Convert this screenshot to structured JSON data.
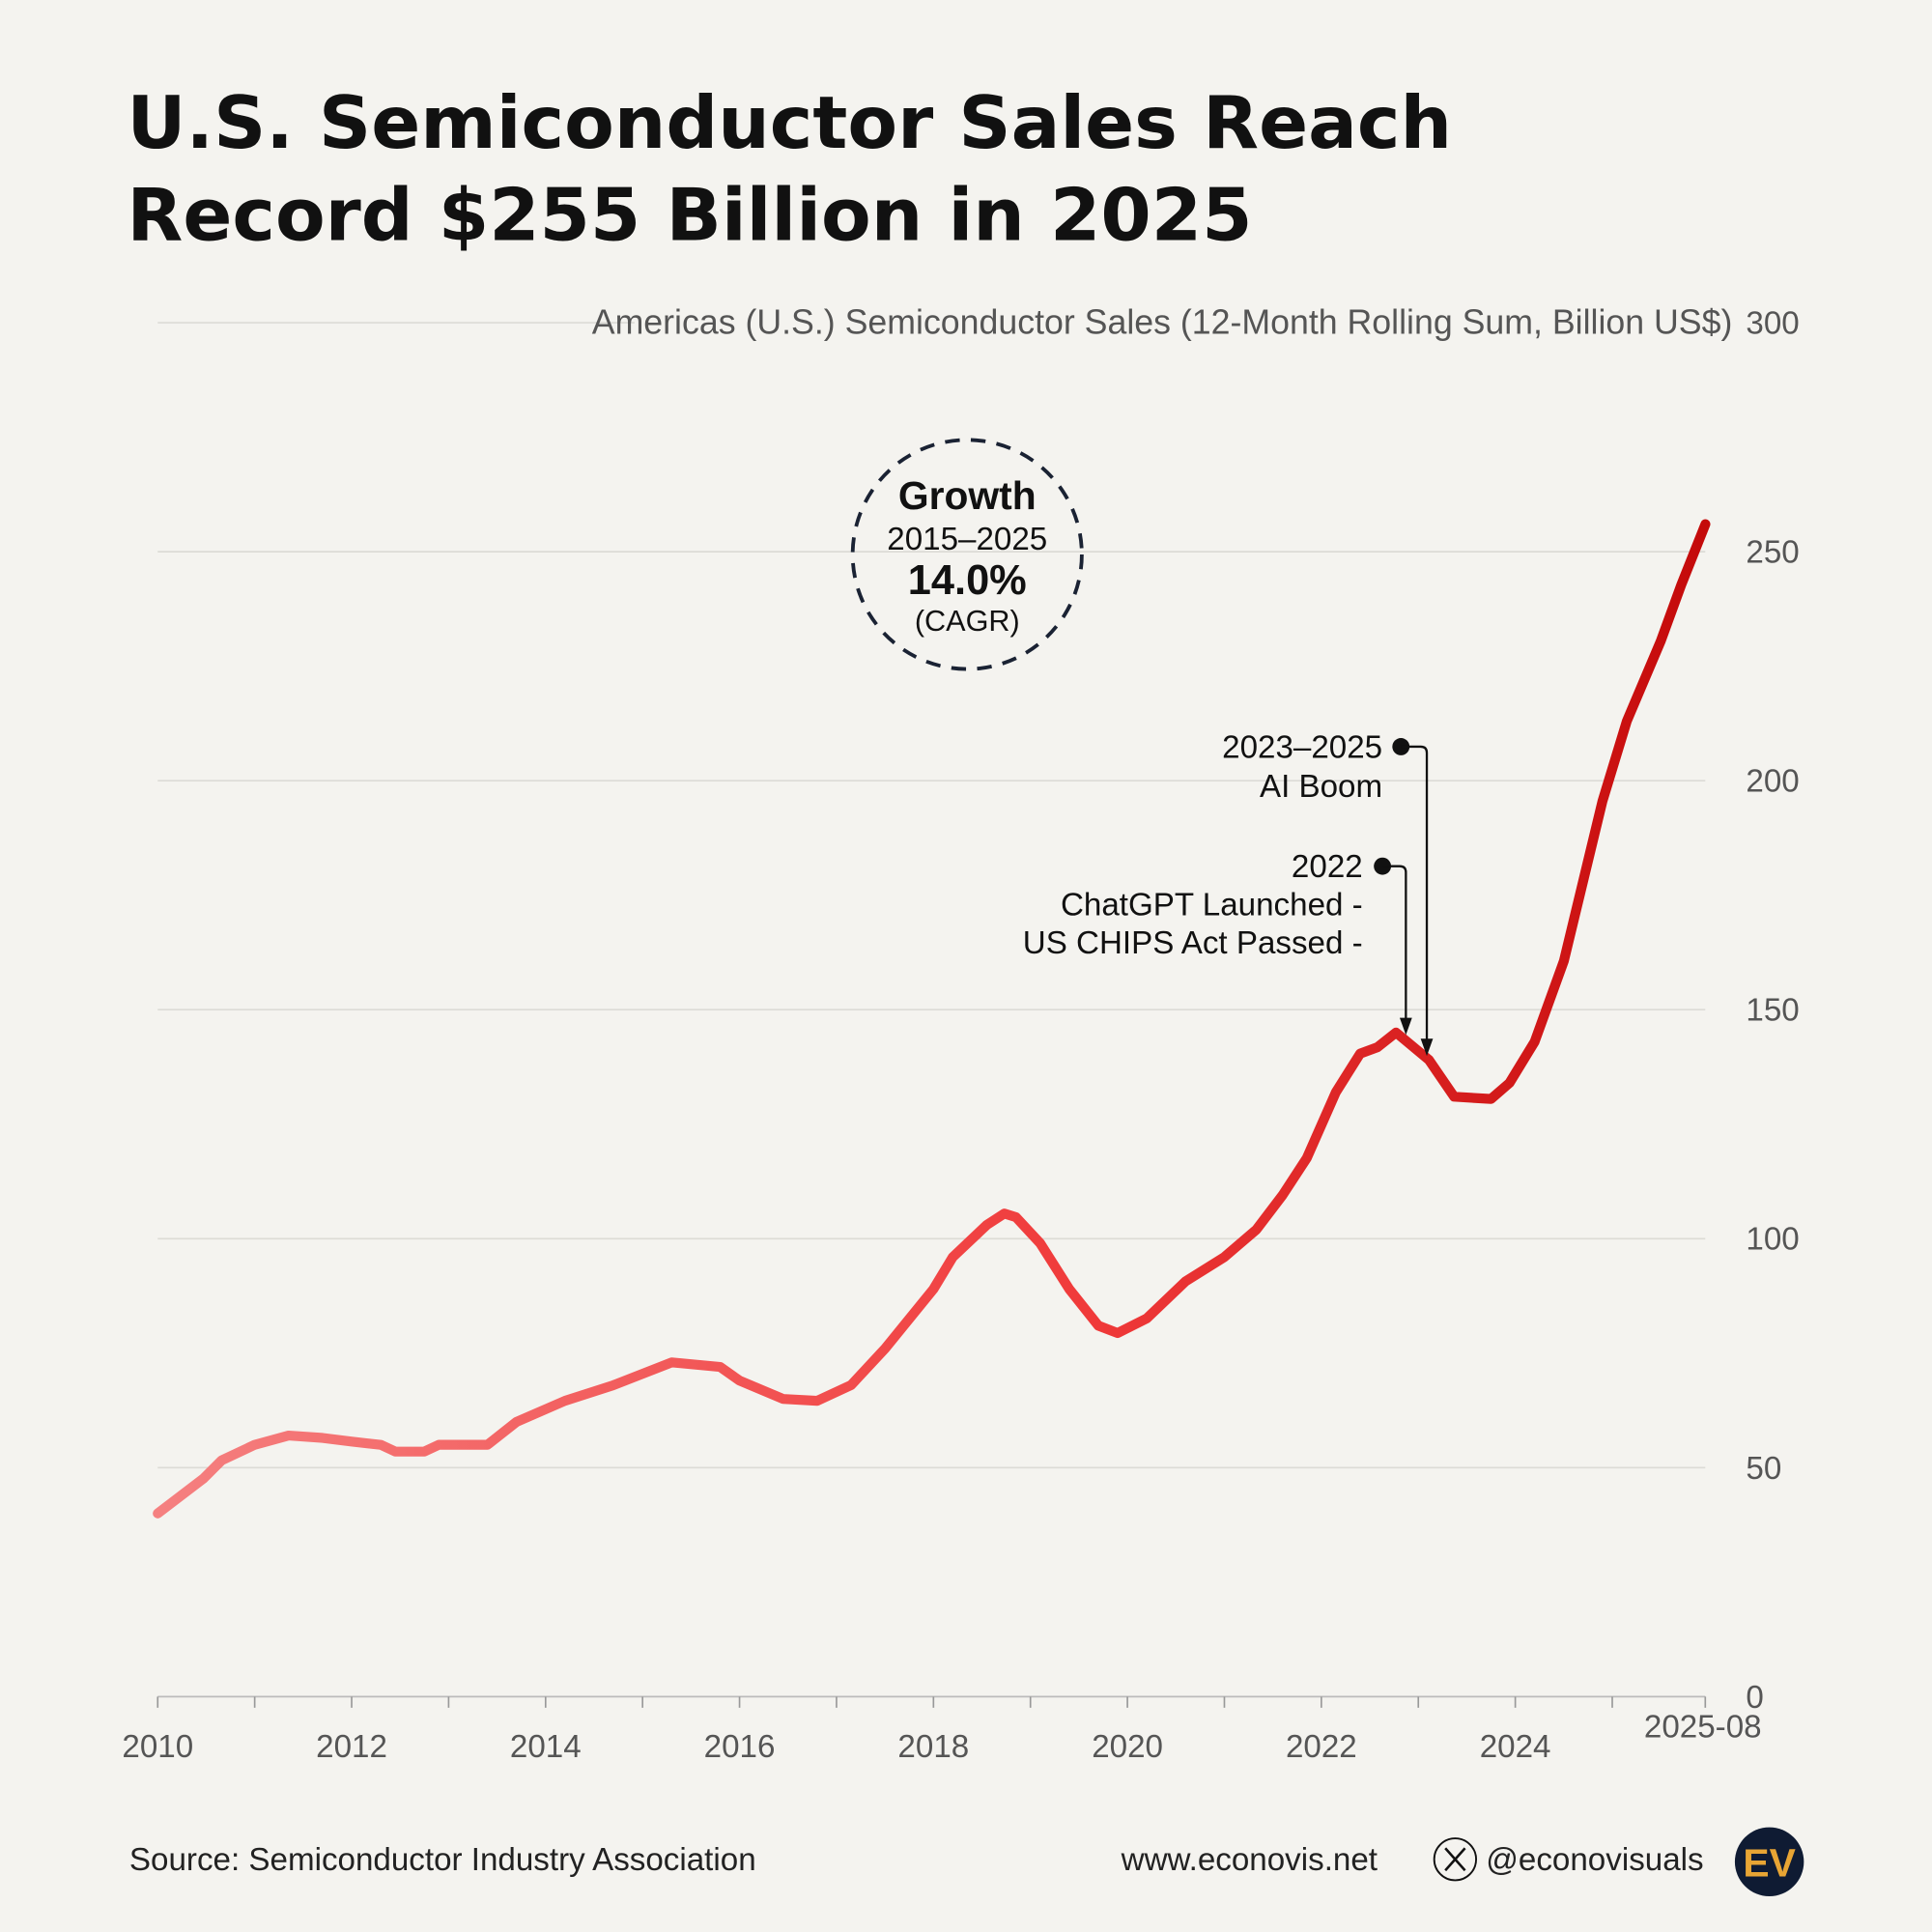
{
  "title_line1": "U.S. Semiconductor Sales Reach",
  "title_line2": "Record $255 Billion in 2025",
  "growth_badge": {
    "heading": "Growth",
    "period": "2015–2025",
    "value": "14.0%",
    "unit": "(CAGR)"
  },
  "annotations": [
    {
      "line1": "2023–2025",
      "line2": "AI Boom"
    },
    {
      "line1": "2022",
      "line2": "ChatGPT Launched -",
      "line3": "US CHIPS Act Passed -"
    }
  ],
  "footer": {
    "source": "Source: Semiconductor Industry Association",
    "website": "www.econovis.net",
    "handle": "@econovisuals",
    "logo_text": "EV"
  },
  "colors": {
    "background": "#f4f3ef",
    "line_start": "#f58080",
    "line_end": "#c40a0a",
    "logo_bg": "#0f1b33",
    "logo_fg": "#e8a534"
  },
  "chart_data": {
    "type": "line",
    "title": "U.S. Semiconductor Sales Reach Record $255 Billion in 2025",
    "ylabel": "Americas (U.S.) Semiconductor Sales (12-Month Rolling Sum, Billion US$)",
    "ylim": [
      0,
      300
    ],
    "yticks": [
      "0",
      "50",
      "100",
      "150",
      "200",
      "250",
      "300"
    ],
    "xticks": [
      "2010",
      "2012",
      "2014",
      "2016",
      "2018",
      "2020",
      "2022",
      "2024",
      "2025-08"
    ],
    "grid": true,
    "series": [
      {
        "x": [
          2010.0,
          2010.47,
          2010.66,
          2011.0,
          2011.35,
          2011.7,
          2012.0,
          2012.3,
          2012.45,
          2012.75,
          2012.9,
          2013.4,
          2013.7,
          2014.2,
          2014.7,
          2015.3,
          2015.8,
          2016.0,
          2016.45,
          2016.8,
          2017.15,
          2017.5,
          2018.0,
          2018.2,
          2018.55,
          2018.73,
          2018.85,
          2019.1,
          2019.4,
          2019.7,
          2019.9,
          2020.2,
          2020.6,
          2021.0,
          2021.33,
          2021.6,
          2021.85,
          2022.15,
          2022.4,
          2022.58,
          2022.77,
          2023.11,
          2023.37,
          2023.75,
          2023.94,
          2024.2,
          2024.5,
          2024.9,
          2025.15,
          2025.5,
          2025.71,
          2025.96
        ],
        "y": [
          40,
          47.6,
          51.6,
          55,
          57,
          56.5,
          55.7,
          55,
          53.5,
          53.5,
          55,
          55,
          60,
          64.6,
          68,
          73,
          72,
          69,
          65,
          64.6,
          68,
          76,
          89,
          96,
          103,
          105.5,
          104.7,
          99,
          89,
          81,
          79.4,
          82.6,
          90.7,
          96,
          102,
          109.5,
          117.6,
          132,
          140.4,
          141.8,
          145,
          139,
          131,
          130.5,
          134,
          143,
          160.6,
          195.6,
          213,
          230.5,
          242.7,
          256
        ]
      }
    ]
  }
}
